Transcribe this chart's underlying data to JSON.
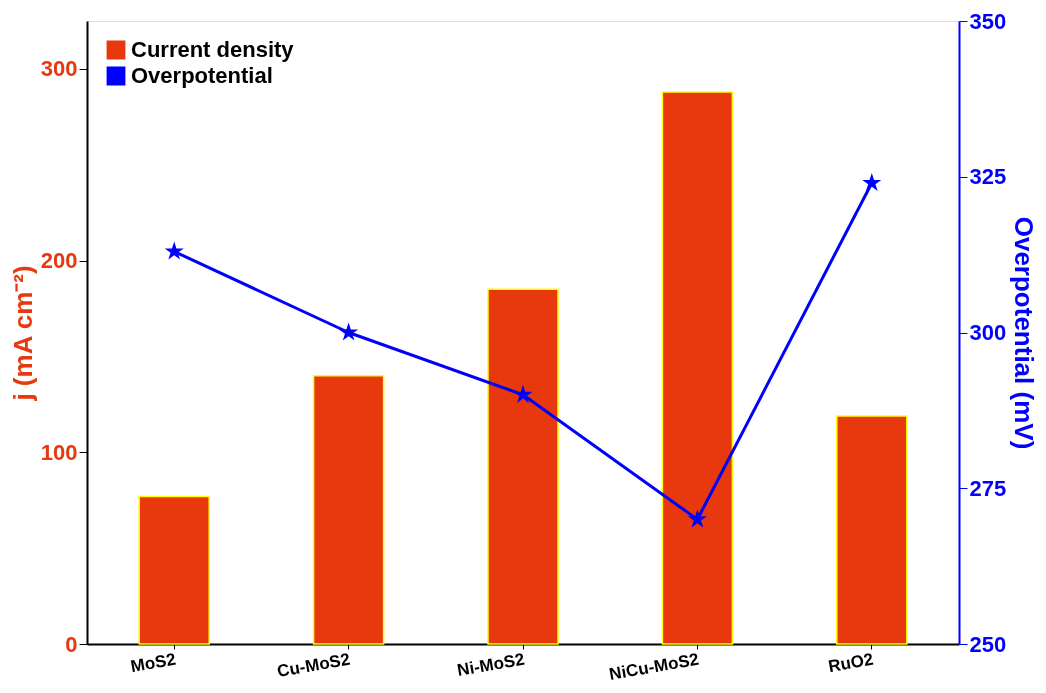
{
  "chart_data": {
    "type": "bar",
    "categories": [
      "MoS2",
      "Cu-MoS2",
      "Ni-MoS2",
      "NiCu-MoS2",
      "RuO2"
    ],
    "ylabel": "j (mA cm⁻²)",
    "y2label": "Overpotential (mV)",
    "series": [
      {
        "name": "Current density",
        "color": "#e8380d",
        "values": [
          77,
          140,
          185,
          288,
          119
        ]
      },
      {
        "name": "Overpotential",
        "type": "line",
        "axis": "y2",
        "color": "#0000ff",
        "marker": "star",
        "values": [
          313,
          300,
          290,
          270,
          324
        ]
      }
    ],
    "ylim": [
      0,
      325
    ],
    "yticks": [
      0,
      100,
      200,
      300
    ],
    "y2lim": [
      250,
      350
    ],
    "y2ticks": [
      250,
      275,
      300,
      325,
      350
    ],
    "legend": "top left",
    "grid": false
  }
}
